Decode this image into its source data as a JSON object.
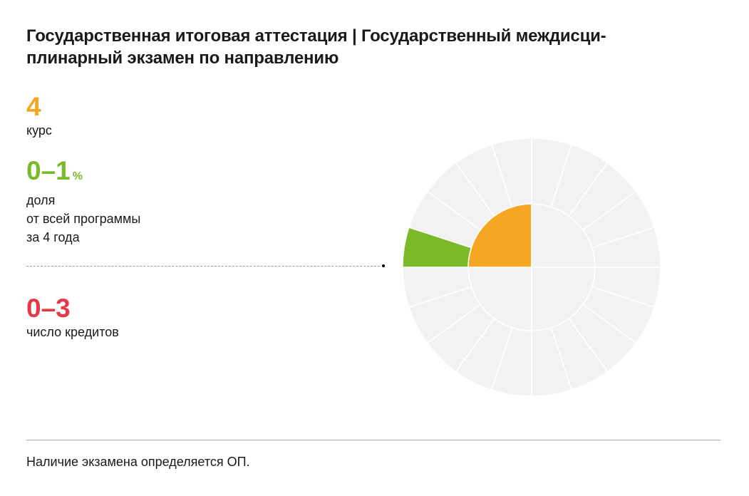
{
  "title": "Государственная итоговая аттестация | Государственный междисци-плинарный экзамен по направлению",
  "stats": {
    "course": {
      "value": "4",
      "label": "курс",
      "color": "#f5a623"
    },
    "share": {
      "value": "0–1",
      "unit": "%",
      "label": "доля\nот всей программы\nза 4 года",
      "color": "#7ab929"
    },
    "credits": {
      "value": "0–3",
      "label": "число кредитов",
      "color": "#e63946"
    }
  },
  "footnote": "Наличие экзамена определяется ОП.",
  "chart_data": {
    "type": "pie",
    "description_free": true,
    "inner_ring": {
      "segments": 4,
      "highlighted": [
        {
          "index": 2,
          "color": "#f5a623",
          "meaning": "course 4"
        }
      ]
    },
    "outer_ring": {
      "segments": 20,
      "highlighted": [
        {
          "index": 10,
          "color": "#7ab929",
          "meaning": "share 0–1%"
        }
      ]
    },
    "colors": {
      "empty": "#f2f2f2",
      "divider": "#ffffff"
    }
  }
}
